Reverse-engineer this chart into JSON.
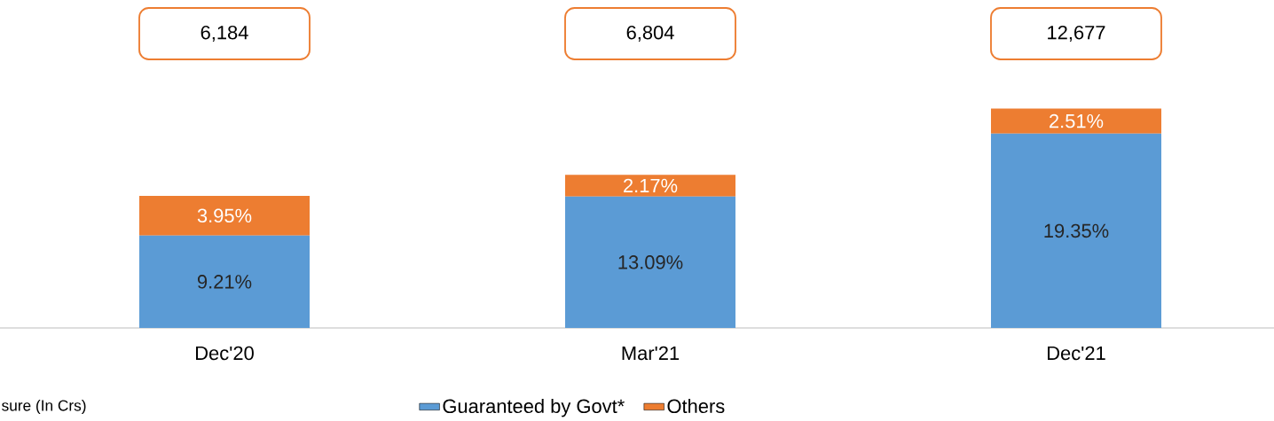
{
  "chart_data": {
    "type": "bar",
    "stacked": true,
    "categories": [
      "Dec'20",
      "Mar'21",
      "Dec'21"
    ],
    "series": [
      {
        "name": "Guaranteed by Govt*",
        "color": "#5b9bd5",
        "values": [
          9.21,
          13.09,
          19.35
        ],
        "value_labels": [
          "9.21%",
          "13.09%",
          "19.35%"
        ]
      },
      {
        "name": "Others",
        "color": "#ed7d31",
        "values": [
          3.95,
          2.17,
          2.51
        ],
        "value_labels": [
          "3.95%",
          "2.17%",
          "2.51%"
        ]
      }
    ],
    "legend": "bottom",
    "annotations": [
      "6,184",
      "6,804",
      "12,677",
      "sure (In Crs)"
    ]
  }
}
